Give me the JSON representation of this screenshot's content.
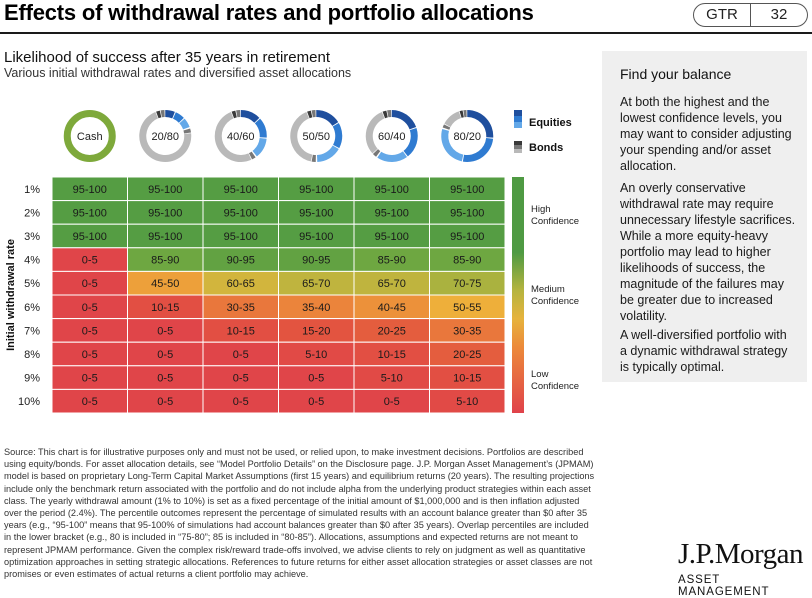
{
  "header": {
    "title": "Effects of withdrawal rates and portfolio allocations",
    "tag": "GTR",
    "page_number": "32"
  },
  "side_panel": {
    "title": "Find your balance",
    "paragraphs": [
      "At both the highest and the lowest confidence levels, you may want to consider adjusting your spending and/or asset allocation.",
      "An overly conservative withdrawal rate may require unnecessary lifestyle sacrifices. While a more equity-heavy portfolio may lead to higher likelihoods of success, the magnitude of the failures may be greater due to increased volatility.",
      "A well-diversified portfolio with a dynamic withdrawal strategy is typically optimal."
    ]
  },
  "footnote": "Source: This chart is for illustrative purposes only and must not be used, or relied upon, to make investment decisions. Portfolios are described using equity/bonds. For asset allocation details, see “Model Portfolio Details” on the Disclosure page. J.P. Morgan Asset Management’s (JPMAM) model is based on proprietary Long-Term Capital Market Assumptions (first 15 years) and equilibrium returns (20 years). The resulting projections include only the benchmark return associated with the portfolio and do not include alpha from the underlying product strategies within each asset class. The yearly withdrawal amount (1% to 10%) is set as a fixed percentage of the initial amount of $1,000,000 and is then inflation adjusted over the period (2.4%). The percentile outcomes represent the percentage of simulated results with an account balance greater than $0 after 35 years (e.g., “95-100” means that 95-100% of simulations had account balances greater than $0 after 35 years). Overlap percentiles are included in the lower bracket (e.g., 80 is included in “75-80”; 85 is included in “80-85”). Allocations, assumptions and expected returns are not meant to represent JPMAM performance. Given the complex risk/reward trade-offs involved, we advise clients to rely on judgment as well as quantitative optimization approaches in setting strategic allocations. References to future returns for either asset allocation strategies or asset classes are not promises or even estimates of actual returns a client portfolio may achieve.",
  "logo": {
    "name": "J.P.Morgan",
    "sub": "ASSET MANAGEMENT"
  },
  "chart_data": {
    "type": "heatmap",
    "title": "Likelihood of success after 35 years in retirement",
    "subtitle": "Various initial withdrawal rates and diversified asset allocations",
    "ylabel": "Initial withdrawal rate",
    "columns": [
      "Cash",
      "20/80",
      "40/60",
      "50/50",
      "60/40",
      "80/20"
    ],
    "equity_fraction": [
      0,
      0.2,
      0.4,
      0.5,
      0.6,
      0.8
    ],
    "rows": [
      "1%",
      "2%",
      "3%",
      "4%",
      "5%",
      "6%",
      "7%",
      "8%",
      "9%",
      "10%"
    ],
    "values": [
      [
        "95-100",
        "95-100",
        "95-100",
        "95-100",
        "95-100",
        "95-100"
      ],
      [
        "95-100",
        "95-100",
        "95-100",
        "95-100",
        "95-100",
        "95-100"
      ],
      [
        "95-100",
        "95-100",
        "95-100",
        "95-100",
        "95-100",
        "95-100"
      ],
      [
        "0-5",
        "85-90",
        "90-95",
        "90-95",
        "85-90",
        "85-90"
      ],
      [
        "0-5",
        "45-50",
        "60-65",
        "65-70",
        "65-70",
        "70-75"
      ],
      [
        "0-5",
        "10-15",
        "30-35",
        "35-40",
        "40-45",
        "50-55"
      ],
      [
        "0-5",
        "0-5",
        "10-15",
        "15-20",
        "20-25",
        "30-35"
      ],
      [
        "0-5",
        "0-5",
        "0-5",
        "5-10",
        "10-15",
        "20-25"
      ],
      [
        "0-5",
        "0-5",
        "0-5",
        "0-5",
        "5-10",
        "10-15"
      ],
      [
        "0-5",
        "0-5",
        "0-5",
        "0-5",
        "0-5",
        "5-10"
      ]
    ],
    "legend_assets": [
      "Equities",
      "Bonds"
    ],
    "confidence_scale": [
      "High Confidence",
      "Medium Confidence",
      "Low Confidence"
    ],
    "colors": {
      "equities": [
        "#1f4f9e",
        "#2f7bd1",
        "#63a8e8"
      ],
      "bonds": [
        "#3a3a3a",
        "#777777",
        "#b9b9b9"
      ],
      "cash": "#7ea93b",
      "high": "#4f9a43",
      "medium": "#e6b33d",
      "low": "#e0424a"
    }
  }
}
